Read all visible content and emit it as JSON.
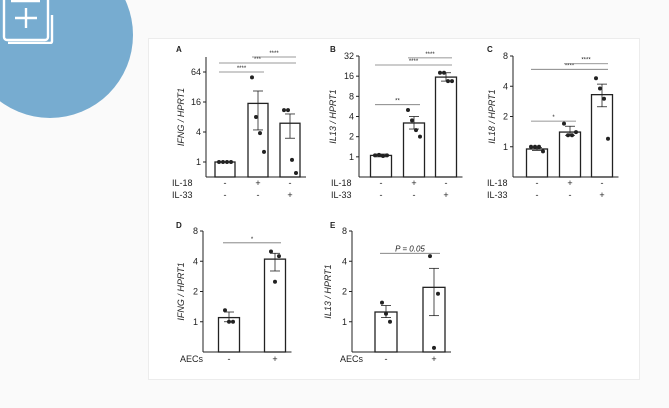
{
  "icon": "document-add-icon",
  "colors": {
    "badge": "#77acd0",
    "bar_fill": "#ffffff",
    "stroke": "#222222"
  },
  "chart_data": [
    {
      "panel": "A",
      "type": "bar",
      "ylabel": "IFNG / HPRT1",
      "yscale": "log2",
      "ylim": [
        0.5,
        128
      ],
      "yticks": [
        1,
        4,
        16,
        64
      ],
      "ytick_labels": [
        "1",
        "4",
        "16",
        "64"
      ],
      "rows": [
        {
          "label": "IL-18",
          "values": [
            "-",
            "+",
            "-"
          ]
        },
        {
          "label": "IL-33",
          "values": [
            "-",
            "-",
            "+"
          ]
        }
      ],
      "values": [
        1,
        15,
        6
      ],
      "errors": [
        [
          1,
          1
        ],
        [
          4.4,
          26.6
        ],
        [
          3.0,
          9.2
        ]
      ],
      "points": [
        [
          1,
          1,
          1,
          1
        ],
        [
          50,
          8,
          3.8,
          1.6
        ],
        [
          11,
          11,
          1.1,
          0.6
        ]
      ],
      "significance": [
        {
          "from": 0,
          "to": 1,
          "y": 64,
          "label": "****"
        },
        {
          "from": 0,
          "to": 2,
          "y": 97,
          "label": "***"
        },
        {
          "from": 1,
          "to": 2,
          "y": 128,
          "label": "****"
        }
      ]
    },
    {
      "panel": "B",
      "type": "bar",
      "ylabel": "IL13 / HPRT1",
      "yscale": "log2",
      "ylim": [
        0.5,
        32
      ],
      "yticks": [
        1,
        2,
        4,
        8,
        16,
        32
      ],
      "ytick_labels": [
        "1",
        "2",
        "4",
        "8",
        "16",
        "32"
      ],
      "rows": [
        {
          "label": "IL-18",
          "values": [
            "-",
            "+",
            "-"
          ]
        },
        {
          "label": "IL-33",
          "values": [
            "-",
            "-",
            "+"
          ]
        }
      ],
      "values": [
        1.05,
        3.2,
        15.5
      ],
      "errors": [
        [
          1.0,
          1.1
        ],
        [
          2.6,
          4.0
        ],
        [
          13.5,
          18
        ]
      ],
      "points": [
        [
          1.05,
          1.07,
          1.03,
          1.05
        ],
        [
          5,
          3.5,
          2.5,
          2
        ],
        [
          18,
          18,
          13.5,
          13.5
        ]
      ],
      "significance": [
        {
          "from": 0,
          "to": 1,
          "y": 6,
          "label": "**"
        },
        {
          "from": 0,
          "to": 2,
          "y": 23.5,
          "label": "****"
        },
        {
          "from": 1,
          "to": 2,
          "y": 30,
          "label": "****"
        }
      ]
    },
    {
      "panel": "C",
      "type": "bar",
      "ylabel": "IL18 / HPRT1",
      "yscale": "log2",
      "ylim": [
        0.5,
        8
      ],
      "yticks": [
        1,
        2,
        4,
        8
      ],
      "ytick_labels": [
        "1",
        "2",
        "4",
        "8"
      ],
      "rows": [
        {
          "label": "IL-18",
          "values": [
            "-",
            "+",
            "-"
          ]
        },
        {
          "label": "IL-33",
          "values": [
            "-",
            "-",
            "+"
          ]
        }
      ],
      "values": [
        0.95,
        1.4,
        3.3
      ],
      "errors": [
        [
          0.92,
          0.98
        ],
        [
          1.3,
          1.6
        ],
        [
          2.5,
          4.2
        ]
      ],
      "points": [
        [
          1,
          1,
          1,
          0.9
        ],
        [
          1.7,
          1.3,
          1.3,
          1.4
        ],
        [
          4.8,
          3.8,
          3.0,
          1.2
        ]
      ],
      "significance": [
        {
          "from": 0,
          "to": 1,
          "y": 1.8,
          "label": "*"
        },
        {
          "from": 0,
          "to": 2,
          "y": 5.9,
          "label": "****"
        },
        {
          "from": 1,
          "to": 2,
          "y": 6.7,
          "label": "****"
        }
      ]
    },
    {
      "panel": "D",
      "type": "bar",
      "ylabel": "IFNG / HPRT1",
      "yscale": "log2",
      "ylim": [
        0.5,
        8
      ],
      "yticks": [
        1,
        2,
        4,
        8
      ],
      "ytick_labels": [
        "1",
        "2",
        "4",
        "8"
      ],
      "rows": [
        {
          "label": "AECs",
          "values": [
            "-",
            "+"
          ]
        }
      ],
      "values": [
        1.1,
        4.2
      ],
      "errors": [
        [
          1.0,
          1.25
        ],
        [
          3.2,
          4.8
        ]
      ],
      "points": [
        [
          1.3,
          1,
          1
        ],
        [
          5,
          4.5,
          2.5
        ]
      ],
      "significance": [
        {
          "from": 0,
          "to": 1,
          "y": 6.1,
          "label": "*"
        }
      ]
    },
    {
      "panel": "E",
      "type": "bar",
      "ylabel": "IL13 / HPRT1",
      "yscale": "log2",
      "ylim": [
        0.5,
        8
      ],
      "yticks": [
        1,
        2,
        4,
        8
      ],
      "ytick_labels": [
        "1",
        "2",
        "4",
        "8"
      ],
      "rows": [
        {
          "label": "AECs",
          "values": [
            "-",
            "+"
          ]
        }
      ],
      "values": [
        1.25,
        2.2
      ],
      "errors": [
        [
          1.1,
          1.45
        ],
        [
          1.15,
          3.4
        ]
      ],
      "points": [
        [
          1.55,
          1.0,
          1.2
        ],
        [
          4.5,
          1.9,
          0.55
        ]
      ],
      "significance": [
        {
          "from": 0,
          "to": 1,
          "y": 4.8,
          "label": "P = 0.05"
        }
      ]
    }
  ]
}
